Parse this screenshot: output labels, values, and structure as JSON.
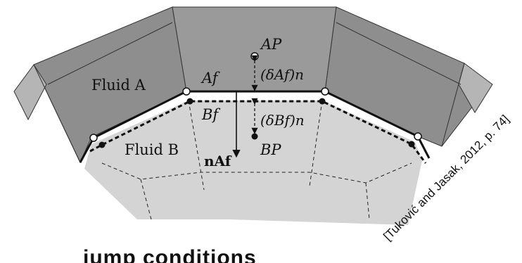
{
  "labels": {
    "fluid_a": "Fluid A",
    "fluid_b": "Fluid B",
    "ap": "AP",
    "af": "Af",
    "bf": "Bf",
    "bp": "BP",
    "delta_af": "(δAf)n",
    "delta_bf": "(δBf)n",
    "normal": "nAf"
  },
  "citation": "[Tuković and Jasak, 2012, p. 74]",
  "heading_partial": "jump conditions",
  "colors": {
    "fluid_a_dark": "#8c8c8c",
    "fluid_a_mid": "#999999",
    "fluid_b_light": "#d3d3d3",
    "line": "#111111"
  }
}
